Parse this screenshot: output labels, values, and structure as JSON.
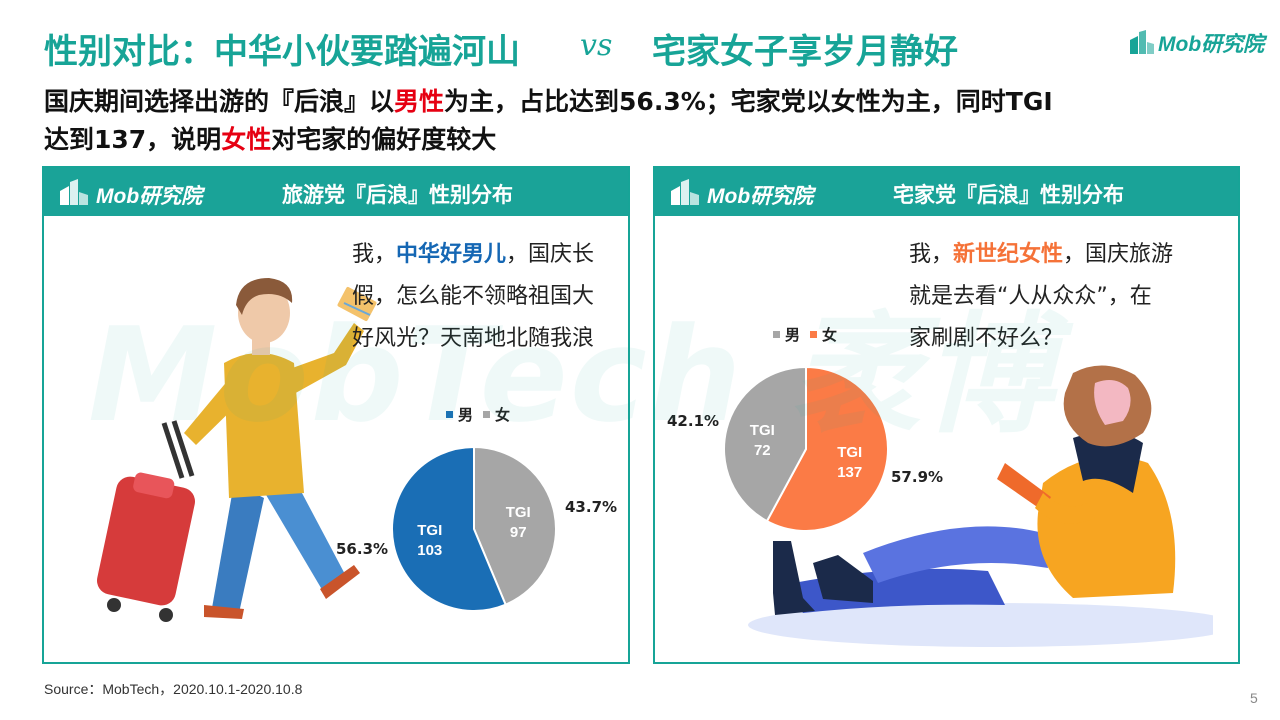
{
  "title": {
    "left": "性别对比：中华小伙要踏遍河山",
    "vs": "vs",
    "right": "宅家女子享岁月静好"
  },
  "brand": {
    "logo_text": "Mob研究院",
    "accent": "#17a497"
  },
  "subtitle": {
    "line1_a": "国庆期间选择出游的『后浪』以",
    "line1_red": "男性",
    "line1_b": "为主，占比达到56.3%；宅家党以女性为主，同时TGI",
    "line2_a": "达到137，说明",
    "line2_red": "女性",
    "line2_b": "对宅家的偏好度较大"
  },
  "watermark": "MobTech 袤博",
  "panels": {
    "left": {
      "logo_text": "Mob研究院",
      "title": "旅游党『后浪』性别分布",
      "speech": {
        "line1_a": "我，",
        "line1_hl": "中华好男儿",
        "line1_b": "，国庆长",
        "line2": "假，怎么能不领略祖国大",
        "line3": "好风光？天南地北随我浪"
      }
    },
    "right": {
      "logo_text": "Mob研究院",
      "title": "宅家党『后浪』性别分布",
      "speech": {
        "line1_a": "我，",
        "line1_hl": "新世纪女性",
        "line1_b": "，国庆旅游",
        "line2": "就是去看“人从众众”，在",
        "line3": "家刷剧不好么？"
      }
    }
  },
  "chart_data": [
    {
      "type": "pie",
      "title": "旅游党『后浪』性别分布",
      "legend": [
        "男",
        "女"
      ],
      "legend_position": "top",
      "slices": [
        {
          "name": "男",
          "value": 56.3,
          "label": "56.3%",
          "tgi_label": "TGI",
          "tgi": "103",
          "color": "#1a6eb5"
        },
        {
          "name": "女",
          "value": 43.7,
          "label": "43.7%",
          "tgi_label": "TGI",
          "tgi": "97",
          "color": "#a6a6a6"
        }
      ]
    },
    {
      "type": "pie",
      "title": "宅家党『后浪』性别分布",
      "legend": [
        "男",
        "女"
      ],
      "legend_position": "top",
      "slices": [
        {
          "name": "男",
          "value": 42.1,
          "label": "42.1%",
          "tgi_label": "TGI",
          "tgi": "72",
          "color": "#a6a6a6"
        },
        {
          "name": "女",
          "value": 57.9,
          "label": "57.9%",
          "tgi_label": "TGI",
          "tgi": "137",
          "color": "#fb7b46"
        }
      ]
    }
  ],
  "source": "Source：MobTech，2020.10.1-2020.10.8",
  "page_number": "5"
}
